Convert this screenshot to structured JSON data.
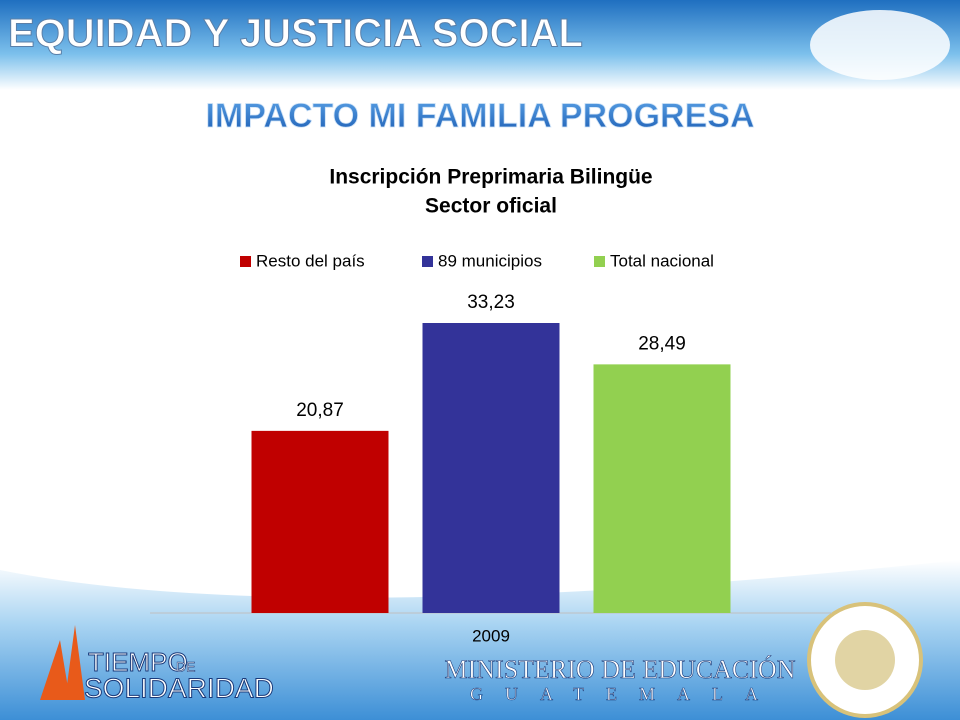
{
  "slide": {
    "header": "EQUIDAD Y JUSTICIA SOCIAL",
    "subtitle": "IMPACTO MI FAMILIA PROGRESA",
    "logo_left": [
      "TIEMPO",
      "DE",
      "SOLIDARIDAD"
    ],
    "logo_right": [
      "MINISTERIO DE EDUCACIÓN",
      "GUATEMALA"
    ]
  },
  "chart_data": {
    "type": "bar",
    "title": [
      "Inscripción Preprimaria Bilingüe",
      "Sector oficial"
    ],
    "categories": [
      "2009"
    ],
    "legend": "top",
    "series": [
      {
        "name": "Resto del país",
        "color": "#c00000",
        "values": [
          20.87
        ],
        "value_labels": [
          "20,87"
        ]
      },
      {
        "name": "89 municipios",
        "color": "#333399",
        "values": [
          33.23
        ],
        "value_labels": [
          "33,23"
        ]
      },
      {
        "name": "Total nacional",
        "color": "#92d050",
        "values": [
          28.49
        ],
        "value_labels": [
          "28,49"
        ]
      }
    ]
  }
}
